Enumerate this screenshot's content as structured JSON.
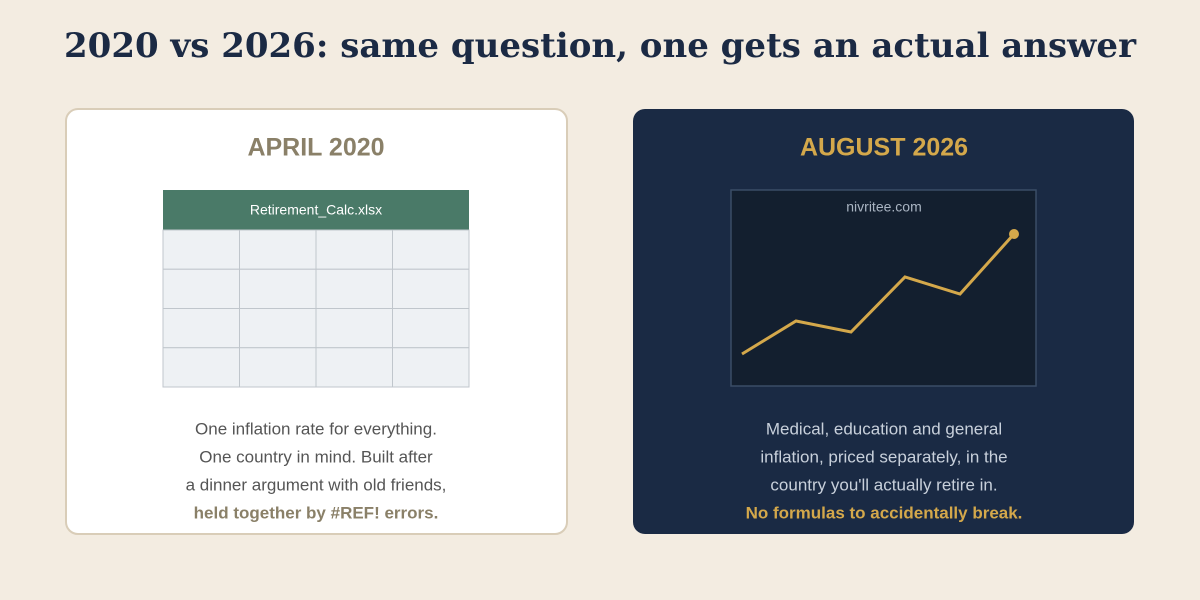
{
  "title": "2020 vs 2026: same question, one gets an actual answer",
  "left": {
    "heading": "APRIL 2020",
    "file_name": "Retirement_Calc.xlsx",
    "lines": [
      "One inflation rate for everything.",
      "One country in mind. Built after",
      "a dinner argument with old friends,"
    ],
    "emphasis": "held together by #REF! errors."
  },
  "right": {
    "heading": "AUGUST 2026",
    "site": "nivritee.com",
    "lines": [
      "Medical, education and general",
      "inflation, priced separately, in the",
      "country you'll actually retire in."
    ],
    "emphasis": "No formulas to accidentally break."
  }
}
